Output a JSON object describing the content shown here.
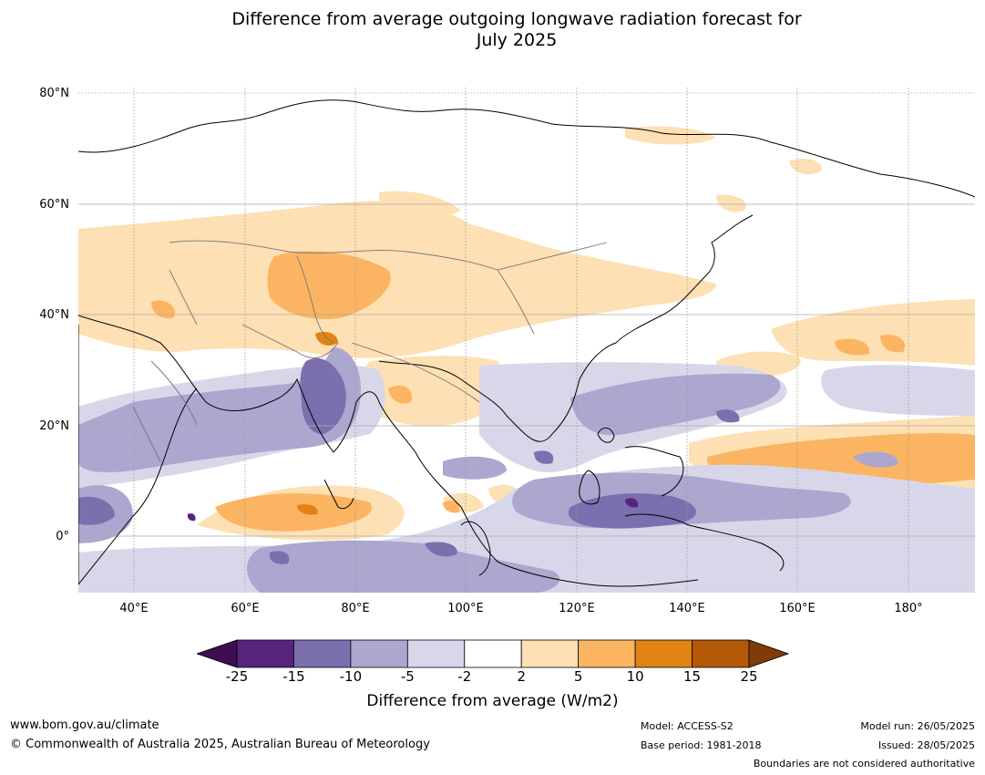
{
  "title_line1": "Difference from average outgoing longwave radiation forecast for",
  "title_line2": "July 2025",
  "lat_labels": [
    "80°N",
    "60°N",
    "40°N",
    "20°N",
    "0°"
  ],
  "lon_labels": [
    "40°E",
    "60°E",
    "80°E",
    "100°E",
    "120°E",
    "140°E",
    "160°E",
    "180°"
  ],
  "colorbar": {
    "ticks": [
      "-25",
      "-15",
      "-10",
      "-5",
      "-2",
      "2",
      "5",
      "10",
      "15",
      "25"
    ],
    "colors": [
      "#3b0f52",
      "#56237f",
      "#7c6fae",
      "#ada6cf",
      "#d8d7ea",
      "#ffffff",
      "#fde0b3",
      "#fbb461",
      "#e08214",
      "#b35806",
      "#7f3b08"
    ],
    "label": "Difference from average (W/m2)"
  },
  "footer": {
    "website": "www.bom.gov.au/climate",
    "copyright": "© Commonwealth of Australia 2025, Australian Bureau of Meteorology",
    "model": "Model: ACCESS-S2",
    "base_period": "Base period: 1981-2018",
    "model_run": "Model run: 26/05/2025",
    "issued": "Issued: 28/05/2025",
    "disclaimer": "Boundaries are not considered authoritative"
  }
}
